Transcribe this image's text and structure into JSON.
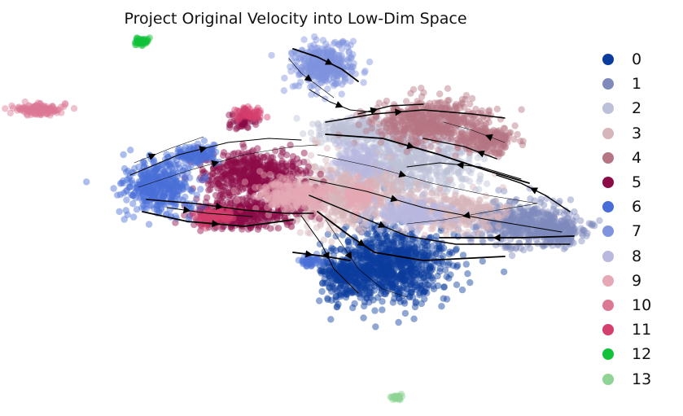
{
  "chart_data": {
    "type": "scatter",
    "subtype": "embedding-with-velocity-streamlines",
    "title": "Project Original Velocity into Low-Dim Space",
    "xlabel": "",
    "ylabel": "",
    "axes_visible": false,
    "grid": false,
    "legend_position": "right",
    "categories": [
      "0",
      "1",
      "2",
      "3",
      "4",
      "5",
      "6",
      "7",
      "8",
      "9",
      "10",
      "11",
      "12",
      "13"
    ],
    "colors": [
      "#0a3c9e",
      "#7f89bc",
      "#bcc0d8",
      "#d6b6ba",
      "#b57582",
      "#8b0a47",
      "#4a6ed8",
      "#7f93de",
      "#b9b9e0",
      "#e4a9b4",
      "#dc7894",
      "#d43f6d",
      "#11c23a",
      "#8fd494"
    ],
    "streamlines_color": "#000000"
  }
}
